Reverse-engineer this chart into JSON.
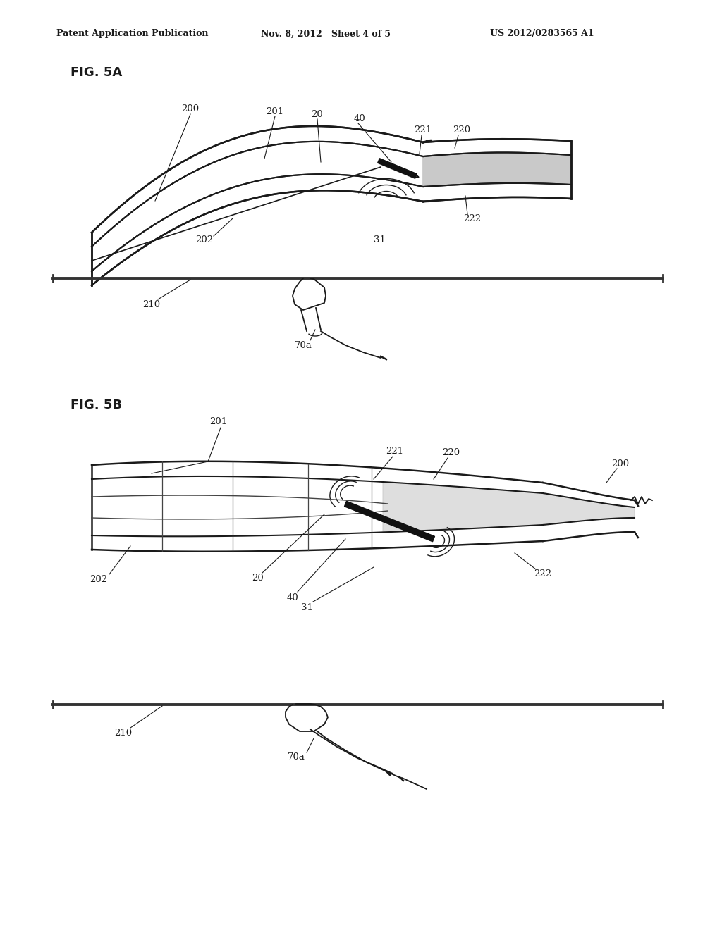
{
  "bg_color": "#ffffff",
  "header_left": "Patent Application Publication",
  "header_mid": "Nov. 8, 2012   Sheet 4 of 5",
  "header_right": "US 2012/0283565 A1",
  "fig5a_label": "FIG. 5A",
  "fig5b_label": "FIG. 5B",
  "line_color": "#1a1a1a",
  "dark_color": "#111111",
  "gray_fill": "#c8c8c8"
}
